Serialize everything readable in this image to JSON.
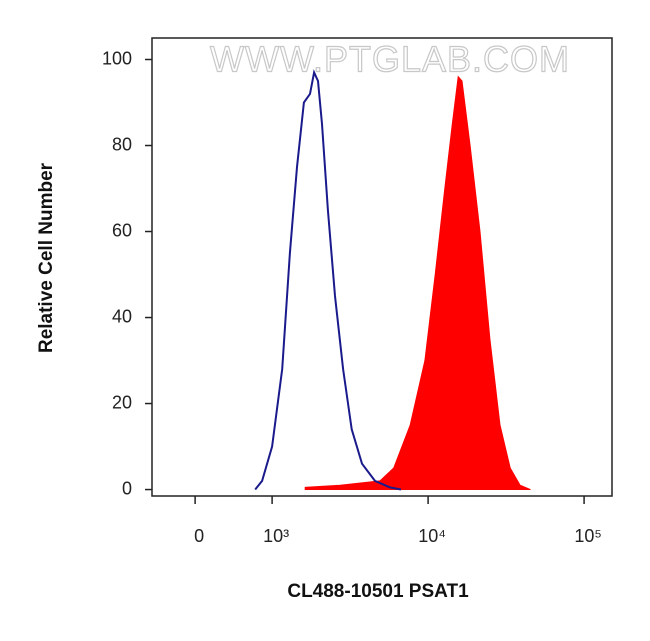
{
  "chart_data": {
    "type": "line",
    "annotation": "WWW.PTGLAB.COM",
    "xlabel": "CL488-10501 PSAT1",
    "ylabel": "Relative Cell Number",
    "xscale": "biexponential",
    "xlim": [
      -560,
      151000
    ],
    "xticks": [
      0,
      {
        "value": 1000,
        "label": "10³"
      },
      {
        "value": 10000,
        "label": "10⁴"
      },
      {
        "value": 100000,
        "label": "10⁵"
      }
    ],
    "ylim": [
      -1.5,
      105
    ],
    "yticks": [
      0,
      20,
      40,
      60,
      80,
      100
    ],
    "series": [
      {
        "color": "#ff0000",
        "fill": true,
        "x": [
          1630,
          2730,
          4920,
          6020,
          7680,
          9540,
          11100,
          12800,
          14300,
          15600,
          16500,
          18600,
          21500,
          24900,
          28900,
          33600,
          38900,
          45100
        ],
        "values": [
          0.5,
          1,
          2,
          5,
          15,
          30,
          50,
          70,
          85,
          96,
          95,
          80,
          60,
          35,
          15,
          5,
          1,
          0
        ]
      },
      {
        "color": "#1a1a8c",
        "fill": false,
        "x": [
          780,
          870,
          1000,
          1160,
          1300,
          1445,
          1600,
          1750,
          1860,
          1970,
          2090,
          2280,
          2530,
          2850,
          3240,
          3770,
          4570,
          5700,
          6700
        ],
        "values": [
          0,
          2,
          10,
          28,
          55,
          75,
          90,
          92,
          97,
          95,
          85,
          65,
          45,
          28,
          14,
          6,
          2,
          0.5,
          0
        ]
      }
    ]
  }
}
